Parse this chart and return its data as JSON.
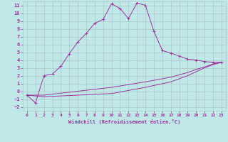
{
  "background_color": "#c0e8e8",
  "grid_color": "#b0c8c8",
  "line_color": "#993399",
  "xlim": [
    -0.5,
    23.5
  ],
  "ylim": [
    -2.5,
    11.5
  ],
  "xlabel": "Windchill (Refroidissement éolien,°C)",
  "xticks": [
    0,
    1,
    2,
    3,
    4,
    5,
    6,
    7,
    8,
    9,
    10,
    11,
    12,
    13,
    14,
    15,
    16,
    17,
    18,
    19,
    20,
    21,
    22,
    23
  ],
  "yticks": [
    -2,
    -1,
    0,
    1,
    2,
    3,
    4,
    5,
    6,
    7,
    8,
    9,
    10,
    11
  ],
  "line1_x": [
    0,
    1,
    2,
    3,
    4,
    5,
    6,
    7,
    8,
    9,
    10,
    11,
    12,
    13,
    14,
    15,
    16,
    17,
    18,
    19,
    20,
    21,
    22,
    23
  ],
  "line1_y": [
    -0.5,
    -1.5,
    2.0,
    2.2,
    3.2,
    4.8,
    6.3,
    7.4,
    8.7,
    9.2,
    11.2,
    10.6,
    9.3,
    11.3,
    11.0,
    7.7,
    5.2,
    4.9,
    4.5,
    4.1,
    4.0,
    3.8,
    3.7,
    3.7
  ],
  "line2_x": [
    0,
    2,
    10,
    14,
    17,
    19,
    20,
    21,
    22,
    23
  ],
  "line2_y": [
    -0.5,
    -0.5,
    0.5,
    1.2,
    1.8,
    2.4,
    2.8,
    3.1,
    3.5,
    3.7
  ],
  "line3_x": [
    0,
    2,
    10,
    14,
    17,
    19,
    20,
    21,
    22,
    23
  ],
  "line3_y": [
    -0.5,
    -0.7,
    -0.3,
    0.5,
    1.2,
    2.0,
    2.5,
    3.0,
    3.4,
    3.7
  ]
}
